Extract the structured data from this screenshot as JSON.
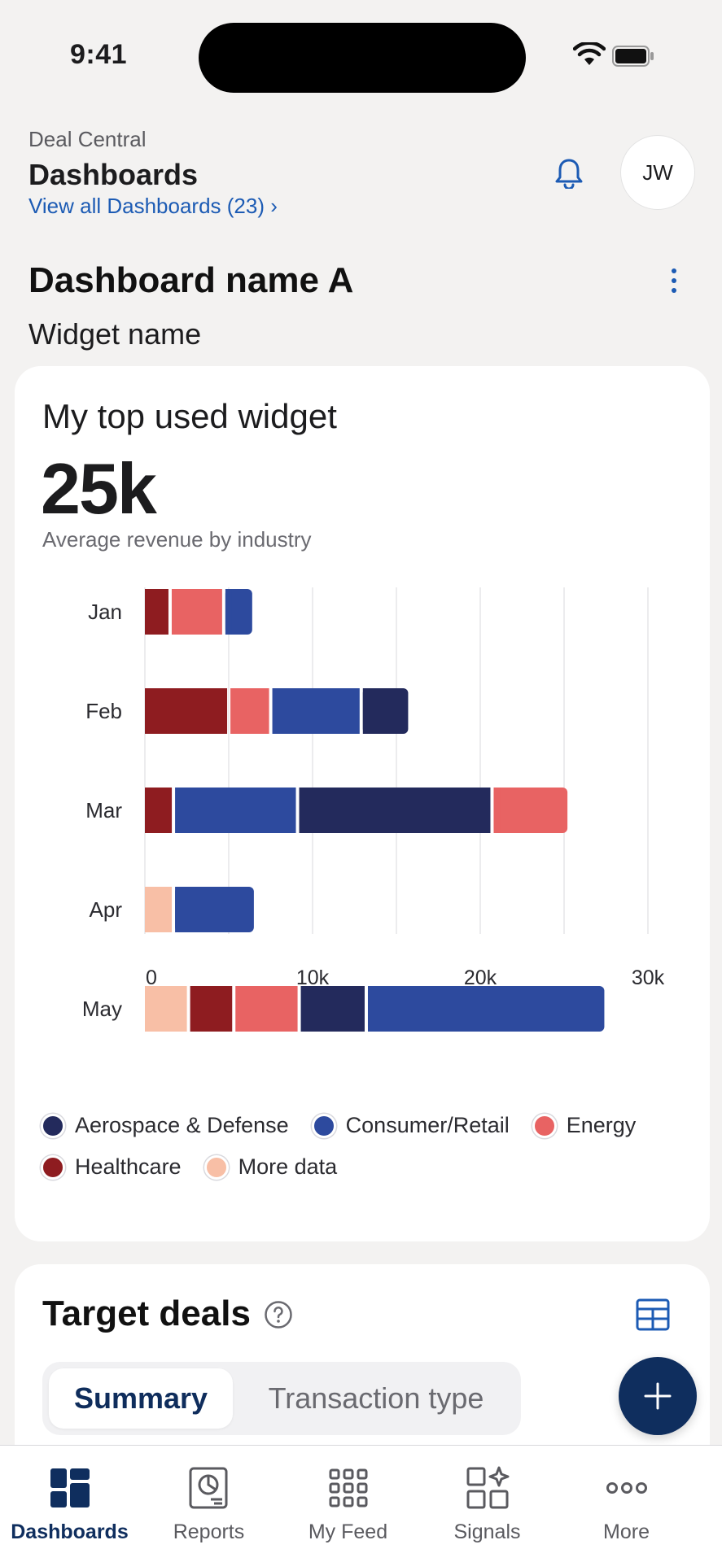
{
  "status_bar": {
    "time": "9:41"
  },
  "header": {
    "app_name": "Deal Central",
    "title": "Dashboards",
    "view_all": "View all Dashboards (23) ›",
    "avatar_initials": "JW"
  },
  "dashboard": {
    "name": "Dashboard name A",
    "widget_section": "Widget name"
  },
  "widget": {
    "title": "My top used widget",
    "kpi_value": "25k",
    "kpi_caption": "Average revenue by industry"
  },
  "colors": {
    "Aerospace & Defense": "#232a5c",
    "Consumer/Retail": "#2d4a9e",
    "Energy": "#e86363",
    "Healthcare": "#8e1c20",
    "More data": "#f8bfa6",
    "accent": "#1c5bb4",
    "navy": "#0f2e5e"
  },
  "chart_data": {
    "type": "bar",
    "orientation": "horizontal",
    "stacked": true,
    "categories": [
      "Jan",
      "Feb",
      "Mar",
      "Apr",
      "May"
    ],
    "x_ticks": [
      "0",
      "10k",
      "20k",
      "30k"
    ],
    "xlim": [
      0,
      30000
    ],
    "grid": true,
    "legend_position": "bottom",
    "legend": [
      "Aerospace & Defense",
      "Consumer/Retail",
      "Energy",
      "Healthcare",
      "More data"
    ],
    "rows": [
      {
        "category": "Jan",
        "segments": [
          {
            "series": "Healthcare",
            "value": 1600
          },
          {
            "series": "Energy",
            "value": 3200
          },
          {
            "series": "Consumer/Retail",
            "value": 1600
          }
        ]
      },
      {
        "category": "Feb",
        "segments": [
          {
            "series": "Healthcare",
            "value": 5100
          },
          {
            "series": "Energy",
            "value": 2500
          },
          {
            "series": "Consumer/Retail",
            "value": 5400
          },
          {
            "series": "Aerospace & Defense",
            "value": 2700
          }
        ]
      },
      {
        "category": "Mar",
        "segments": [
          {
            "series": "Healthcare",
            "value": 1800
          },
          {
            "series": "Consumer/Retail",
            "value": 7400
          },
          {
            "series": "Aerospace & Defense",
            "value": 11600
          },
          {
            "series": "Energy",
            "value": 4400
          }
        ]
      },
      {
        "category": "Apr",
        "segments": [
          {
            "series": "More data",
            "value": 1800
          },
          {
            "series": "Consumer/Retail",
            "value": 4700
          }
        ]
      },
      {
        "category": "May",
        "segments": [
          {
            "series": "More data",
            "value": 2700
          },
          {
            "series": "Healthcare",
            "value": 2700
          },
          {
            "series": "Energy",
            "value": 3900
          },
          {
            "series": "Aerospace & Defense",
            "value": 4000
          },
          {
            "series": "Consumer/Retail",
            "value": 14100
          }
        ]
      }
    ]
  },
  "target_deals": {
    "title": "Target deals",
    "tabs": [
      "Summary",
      "Transaction type"
    ],
    "active_tab": "Summary"
  },
  "tab_bar": {
    "items": [
      {
        "label": "Dashboards",
        "icon": "dashboards-icon",
        "active": true
      },
      {
        "label": "Reports",
        "icon": "reports-icon",
        "active": false
      },
      {
        "label": "My Feed",
        "icon": "grid-icon",
        "active": false
      },
      {
        "label": "Signals",
        "icon": "signals-icon",
        "active": false
      },
      {
        "label": "More",
        "icon": "more-icon",
        "active": false
      }
    ]
  }
}
